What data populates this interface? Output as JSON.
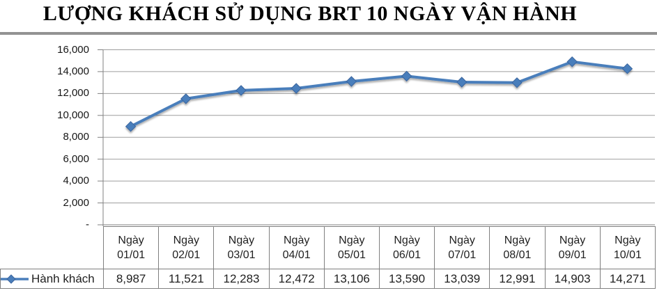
{
  "title": "LƯỢNG KHÁCH SỬ DỤNG BRT 10 NGÀY VẬN HÀNH",
  "chart_data": {
    "type": "line",
    "categories": [
      "Ngày 01/01",
      "Ngày 02/01",
      "Ngày 03/01",
      "Ngày 04/01",
      "Ngày 05/01",
      "Ngày 06/01",
      "Ngày 07/01",
      "Ngày 08/01",
      "Ngày 09/01",
      "Ngày 10/01"
    ],
    "series": [
      {
        "name": "Hành khách",
        "values": [
          8987,
          11521,
          12283,
          12472,
          13106,
          13590,
          13039,
          12991,
          14903,
          14271
        ]
      }
    ],
    "ylim": [
      0,
      16000
    ],
    "ytick_step": 2000,
    "ytick_labels": [
      "-",
      "2,000",
      "4,000",
      "6,000",
      "8,000",
      "10,000",
      "12,000",
      "14,000",
      "16,000"
    ],
    "grid": true,
    "marker": "diamond",
    "legend_position": "table-left",
    "colors": {
      "line": "#4A7EBB",
      "marker_fill": "#4A7EBB",
      "marker_edge": "#3A659E",
      "gridline": "#9d9d9d",
      "axis": "#808080",
      "table_border": "#7f7f7f",
      "title_rule": "#929292",
      "text": "#1f1f1f"
    }
  },
  "table": {
    "row_header": "Hành khách",
    "columns": [
      "Ngày 01/01",
      "Ngày 02/01",
      "Ngày 03/01",
      "Ngày 04/01",
      "Ngày 05/01",
      "Ngày 06/01",
      "Ngày 07/01",
      "Ngày 08/01",
      "Ngày 09/01",
      "Ngày 10/01"
    ],
    "values": [
      "8,987",
      "11,521",
      "12,283",
      "12,472",
      "13,106",
      "13,590",
      "13,039",
      "12,991",
      "14,903",
      "14,271"
    ]
  }
}
